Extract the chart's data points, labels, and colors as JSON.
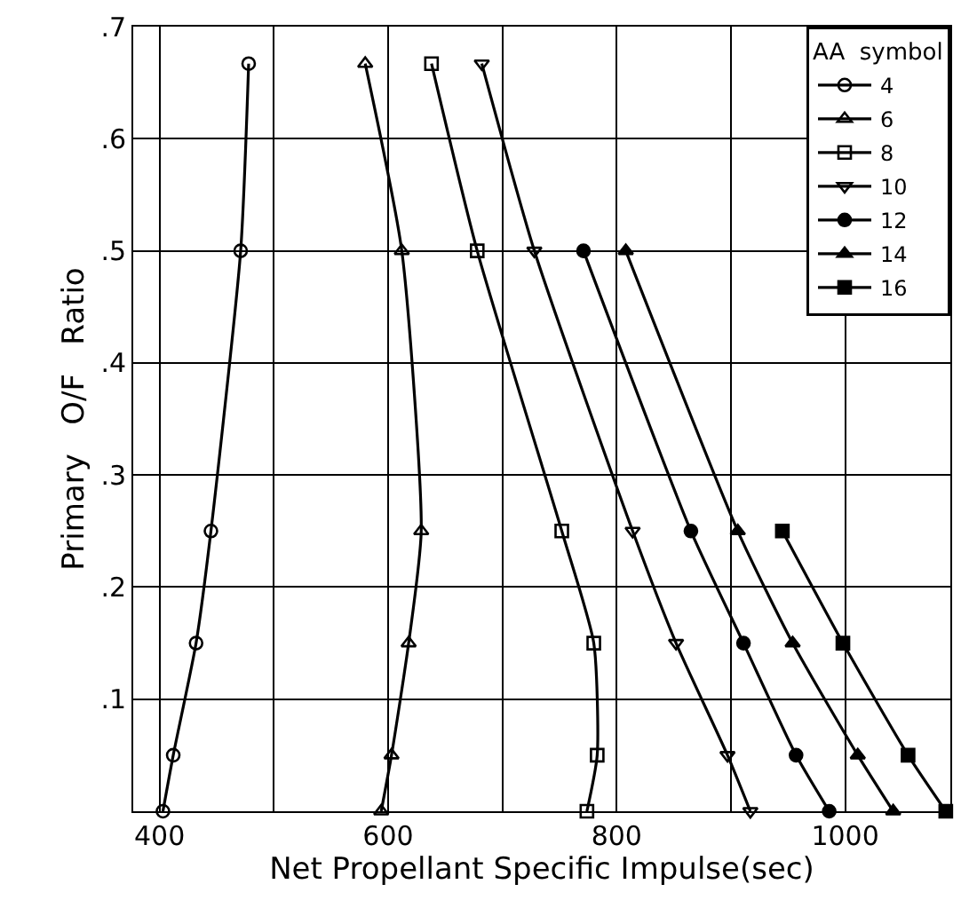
{
  "chart_data": {
    "type": "line",
    "xlabel": "Net Propellant Specific Impulse(sec)",
    "ylabel": "Primary   O/F   Ratio",
    "legend_title": "AA  symbol",
    "legend": "top right",
    "grid": true,
    "line_style": "solid",
    "xlim": [
      377,
      1092
    ],
    "ylim": [
      0,
      0.7
    ],
    "xticks": [
      400,
      {
        "value": 500,
        "label": null
      },
      600,
      {
        "value": 700,
        "label": null
      },
      800,
      {
        "value": 900,
        "label": null
      },
      1000
    ],
    "yticks": [
      {
        "value": 0,
        "label": null
      },
      {
        "value": 0.1,
        "label": ".1"
      },
      {
        "value": 0.2,
        "label": ".2"
      },
      {
        "value": 0.3,
        "label": ".3"
      },
      {
        "value": 0.4,
        "label": ".4"
      },
      {
        "value": 0.5,
        "label": ".5"
      },
      {
        "value": 0.6,
        "label": ".6"
      },
      {
        "value": 0.7,
        "label": ".7"
      }
    ],
    "series": [
      {
        "name": "4",
        "color": "#000000",
        "marker": "circle-open",
        "x": [
          478,
          471,
          445,
          432,
          412,
          403
        ],
        "values": [
          0.667,
          0.5,
          0.25,
          0.15,
          0.05,
          0
        ]
      },
      {
        "name": "6",
        "color": "#000000",
        "marker": "triangle-open",
        "x": [
          580,
          612,
          629,
          618,
          603,
          594
        ],
        "values": [
          0.667,
          0.5,
          0.25,
          0.15,
          0.05,
          0
        ]
      },
      {
        "name": "8",
        "color": "#000000",
        "marker": "square-open",
        "x": [
          638,
          678,
          752,
          780,
          783,
          774
        ],
        "values": [
          0.667,
          0.5,
          0.25,
          0.15,
          0.05,
          0
        ]
      },
      {
        "name": "10",
        "color": "#000000",
        "marker": "triangle-down-open",
        "x": [
          682,
          728,
          814,
          852,
          897,
          917
        ],
        "values": [
          0.667,
          0.5,
          0.25,
          0.15,
          0.05,
          0
        ]
      },
      {
        "name": "12",
        "color": "#000000",
        "marker": "circle",
        "x": [
          771,
          865,
          911,
          957,
          986
        ],
        "values": [
          0.5,
          0.25,
          0.15,
          0.05,
          0
        ]
      },
      {
        "name": "14",
        "color": "#000000",
        "marker": "triangle",
        "x": [
          808,
          906,
          954,
          1011,
          1042
        ],
        "values": [
          0.5,
          0.25,
          0.15,
          0.05,
          0
        ]
      },
      {
        "name": "16",
        "color": "#000000",
        "marker": "square",
        "x": [
          945,
          998,
          1055,
          1088
        ],
        "values": [
          0.25,
          0.15,
          0.05,
          0
        ]
      }
    ]
  }
}
